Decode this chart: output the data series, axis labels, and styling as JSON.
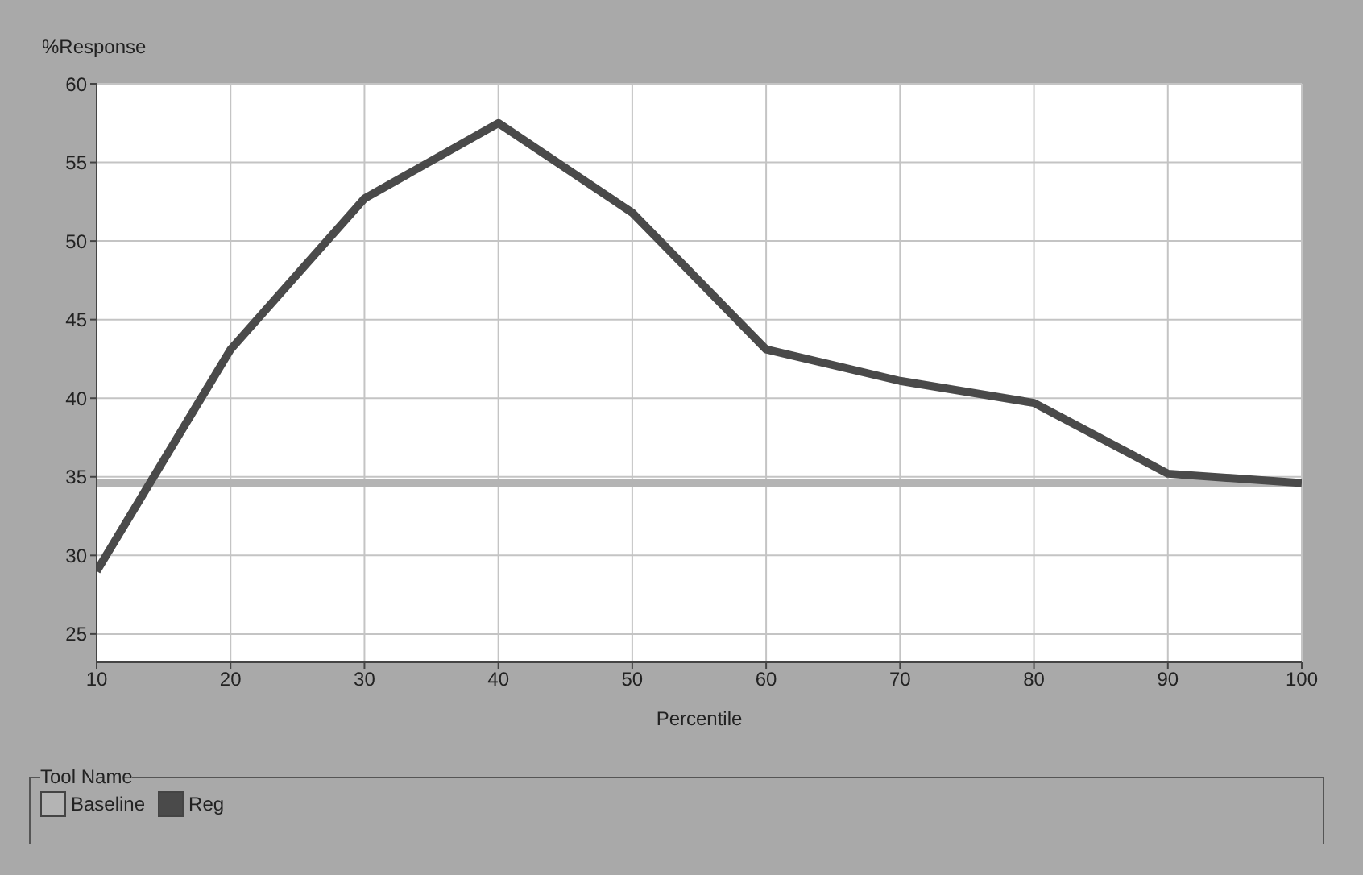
{
  "chart_data": {
    "type": "line",
    "xlabel": "Percentile",
    "ylabel": "%Response",
    "legend_title": "Tool Name",
    "x": [
      10,
      20,
      30,
      40,
      50,
      60,
      70,
      80,
      90,
      100
    ],
    "series": [
      {
        "name": "Baseline",
        "color": "#b4b4b4",
        "values": [
          34.6,
          34.6,
          34.6,
          34.6,
          34.6,
          34.6,
          34.6,
          34.6,
          34.6,
          34.6
        ]
      },
      {
        "name": "Reg",
        "color": "#4a4a4a",
        "values": [
          29,
          43.1,
          52.7,
          57.5,
          51.8,
          43.1,
          41.1,
          39.7,
          35.2,
          34.6
        ]
      }
    ],
    "xlim": [
      10,
      100
    ],
    "xticks": [
      10,
      20,
      30,
      40,
      50,
      60,
      70,
      80,
      90,
      100
    ],
    "ylim": [
      23.2,
      60
    ],
    "yticks": [
      25,
      30,
      35,
      40,
      45,
      50,
      55,
      60
    ],
    "grid": true,
    "legend": "bottom",
    "marker": "none",
    "line_style": "solid"
  }
}
